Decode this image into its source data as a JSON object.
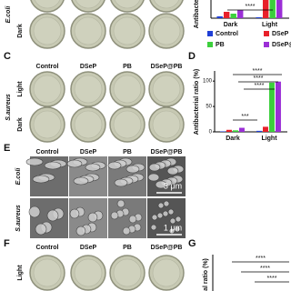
{
  "figure": {
    "a": {
      "species": "E.coli",
      "rows": [
        "Dark"
      ]
    },
    "c": {
      "label": "C",
      "columns": [
        "Control",
        "DSeP",
        "PB",
        "DSeP@PB"
      ],
      "species": "S.aureus",
      "rows": [
        "Light",
        "Dark"
      ]
    },
    "e": {
      "label": "E",
      "columns": [
        "Control",
        "DSeP",
        "PB",
        "DSeP@PB"
      ],
      "rows": [
        "E.coli",
        "S.aureus"
      ],
      "scale_bars": [
        "3 μm",
        "1 μm"
      ]
    },
    "f": {
      "label": "F",
      "columns": [
        "Control",
        "DSeP",
        "PB",
        "DSeP@PB"
      ],
      "rows": [
        "Light"
      ]
    },
    "g": {
      "label": "G",
      "ylabel": "al ratio (%)",
      "annotations": [
        "****",
        "****",
        "****"
      ]
    }
  },
  "chart_data": [
    {
      "type": "bar",
      "ylabel": "Antibacterial",
      "categories": [
        "Dark",
        "Light"
      ],
      "series": [
        {
          "name": "Control",
          "color": "#1f3fd6",
          "values": [
            4,
            2
          ]
        },
        {
          "name": "DSeP",
          "color": "#e8202a",
          "values": [
            14,
            62
          ]
        },
        {
          "name": "PB",
          "color": "#3ccf3c",
          "values": [
            10,
            72
          ]
        },
        {
          "name": "DSeP@PB",
          "color": "#9b2fd6",
          "values": [
            18,
            96
          ]
        }
      ],
      "ylim": [
        0,
        100
      ],
      "annotations": [
        "****"
      ]
    },
    {
      "type": "bar",
      "label": "D",
      "ylabel": "Antibacterial ratio (%)",
      "categories": [
        "Dark",
        "Light"
      ],
      "series": [
        {
          "color": "#1f3fd6",
          "values": [
            1,
            2
          ]
        },
        {
          "color": "#e8202a",
          "values": [
            4,
            10
          ]
        },
        {
          "color": "#3ccf3c",
          "values": [
            3,
            97
          ]
        },
        {
          "color": "#9b2fd6",
          "values": [
            8,
            99
          ]
        }
      ],
      "ylim": [
        0,
        120
      ],
      "yticks": [
        0,
        50,
        100
      ],
      "annotations": [
        "****",
        "****",
        "****",
        "***"
      ]
    }
  ]
}
